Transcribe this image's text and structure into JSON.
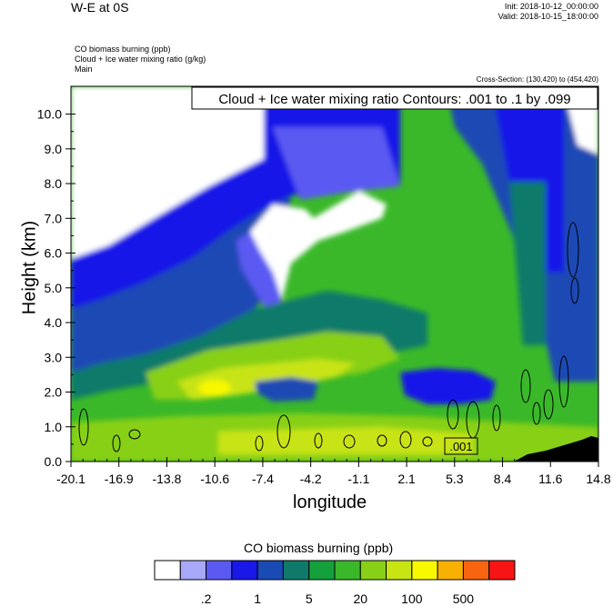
{
  "header": {
    "title": "W-E at 0S",
    "init": "Init: 2018-10-12_00:00:00",
    "valid": "Valid: 2018-10-15_18:00:00",
    "subtitle_lines": [
      "CO biomass burning   (ppb)",
      "Cloud + Ice water mixing ratio   (g/kg)",
      "Main"
    ],
    "cross_section": "Cross-Section: (130,420) to (454,420)"
  },
  "colorbar": {
    "title": "CO biomass burning  (ppb)",
    "colors": [
      "#ffffff",
      "#a8a8f8",
      "#5a5af2",
      "#1818e8",
      "#1a4ab4",
      "#0f7a6a",
      "#14a03c",
      "#3ab82a",
      "#88d018",
      "#c8e412",
      "#f8f800",
      "#f8b000",
      "#f86410",
      "#f81414"
    ],
    "labels": [
      ".2",
      "1",
      "5",
      "20",
      "100",
      "500"
    ]
  },
  "chart_data": {
    "type": "heatmap",
    "title": "Cloud + Ice water mixing ratio Contours: .001 to .1 by .099",
    "xlabel": "longitude",
    "ylabel": "Height (km)",
    "xticks": [
      "-20.1",
      "-16.9",
      "-13.8",
      "-10.6",
      "-7.4",
      "-4.2",
      "-1.1",
      "2.1",
      "5.3",
      "8.4",
      "11.6",
      "14.8"
    ],
    "yticks": [
      "0.0",
      "1.0",
      "2.0",
      "3.0",
      "4.0",
      "5.0",
      "6.0",
      "7.0",
      "8.0",
      "9.0",
      "10.0"
    ],
    "xlim": [
      -20.1,
      14.8
    ],
    "ylim": [
      0,
      10.8
    ],
    "contour_label": ".001"
  }
}
